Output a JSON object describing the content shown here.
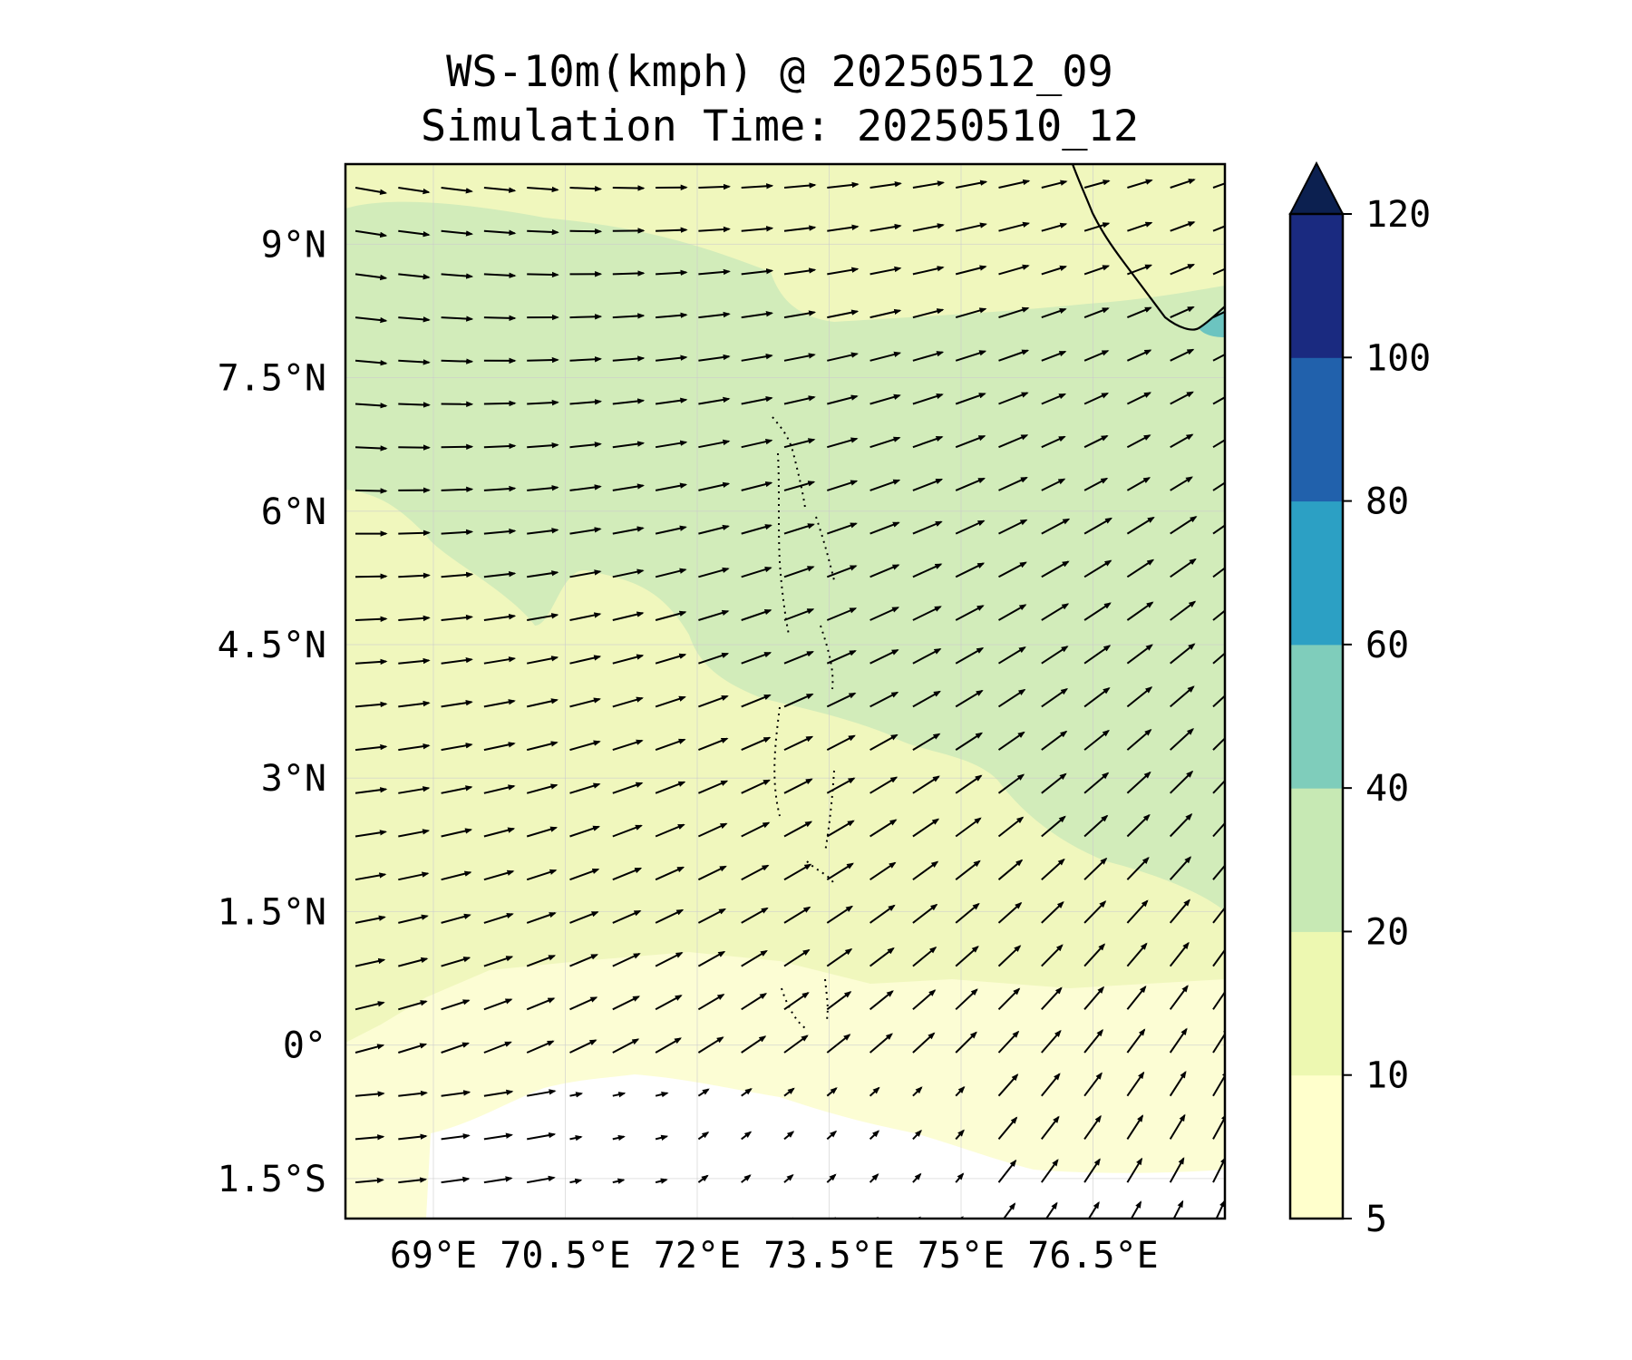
{
  "title": {
    "line1": "WS-10m(kmph) @ 20250512_09",
    "line2": "Simulation Time: 20250510_12"
  },
  "map": {
    "lon_ticks": [
      "69°E",
      "70.5°E",
      "72°E",
      "73.5°E",
      "75°E",
      "76.5°E"
    ],
    "lat_ticks": [
      "9°N",
      "7.5°N",
      "6°N",
      "4.5°N",
      "3°N",
      "1.5°N",
      "0°",
      "1.5°S"
    ],
    "lon_range": [
      68.0,
      78.0
    ],
    "lat_range": [
      -1.95,
      9.9
    ],
    "lon_tick_values": [
      69.0,
      70.5,
      72.0,
      73.5,
      75.0,
      76.5
    ],
    "lat_tick_values": [
      9.0,
      7.5,
      6.0,
      4.5,
      3.0,
      1.5,
      0.0,
      -1.5
    ],
    "gridlines": true,
    "features": [
      "coastline",
      "island-outlines",
      "wind-vectors",
      "filled-contours"
    ]
  },
  "colorbar": {
    "ticks": [
      "5",
      "10",
      "20",
      "40",
      "60",
      "80",
      "100",
      "120"
    ],
    "levels": [
      5,
      10,
      20,
      40,
      60,
      80,
      100,
      120
    ],
    "colors": [
      "#ffffcc",
      "#edf8b1",
      "#c7e9b4",
      "#7fcdbb",
      "#2ca0c4",
      "#2161ac",
      "#1a2a80"
    ],
    "extend_color": "#0c2050",
    "extend": "max"
  },
  "colors": {
    "light": "#fcfdd4",
    "mid": "#f0f7bd",
    "green": "#d2ecba",
    "teal": "#6cc4c0",
    "vector": "#000000"
  }
}
